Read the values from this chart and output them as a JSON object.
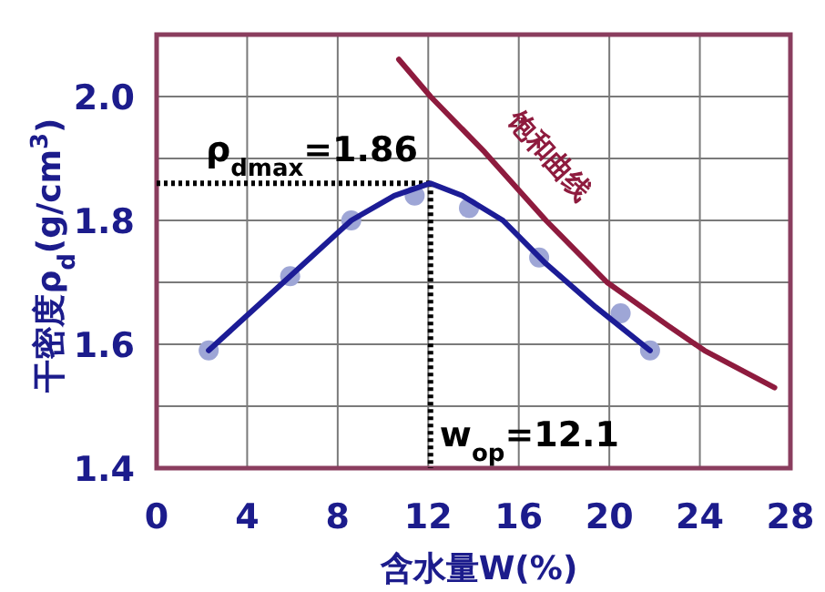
{
  "chart_data": {
    "type": "line",
    "xlabel": "含水量W(%)",
    "ylabel": "干密度ρ$_{d}$(g/cm$^{3}$)",
    "xlim": [
      0,
      28
    ],
    "ylim": [
      1.4,
      2.1
    ],
    "xticks": [
      0,
      4,
      8,
      12,
      16,
      20,
      24,
      28
    ],
    "yticks": [
      1.4,
      {
        "value": 1.5,
        "label": null
      },
      1.6,
      {
        "value": 1.7,
        "label": null
      },
      1.8,
      {
        "value": 1.9,
        "label": null
      },
      {
        "value": 2,
        "label": "2.0"
      }
    ],
    "grid": true,
    "series": [
      {
        "type": "scatter",
        "marker": "circle",
        "color": "#9ea6d6",
        "x": [
          2.3,
          5.9,
          8.6,
          11.4,
          13.8,
          16.9,
          20.5,
          21.8
        ],
        "values": [
          1.59,
          1.71,
          1.8,
          1.84,
          1.82,
          1.74,
          1.65,
          1.59
        ]
      },
      {
        "type": "line",
        "color": "#1c1c96",
        "x": [
          2.3,
          5.9,
          8.6,
          10.5,
          12.1,
          13.5,
          15.3,
          17.2,
          19.4,
          21.8
        ],
        "values": [
          1.59,
          1.71,
          1.8,
          1.84,
          1.86,
          1.84,
          1.8,
          1.73,
          1.66,
          1.59
        ]
      },
      {
        "type": "line",
        "name": "饱和曲线",
        "color": "#8e1b3e",
        "x": [
          10.7,
          12.1,
          14.5,
          17.2,
          19.9,
          22.6,
          24.2,
          27.3
        ],
        "values": [
          2.06,
          2.0,
          1.91,
          1.8,
          1.7,
          1.63,
          1.59,
          1.53
        ]
      }
    ],
    "ref_lines": [
      {
        "axis": "y",
        "value": 1.86,
        "label": "ρ$_{dmax}$=1.86",
        "line_style": "dotted",
        "color": "#000000"
      },
      {
        "axis": "x",
        "value": 12.1,
        "label": "w$_{op}$=12.1",
        "line_style": "dotted",
        "color": "#000000"
      }
    ]
  }
}
